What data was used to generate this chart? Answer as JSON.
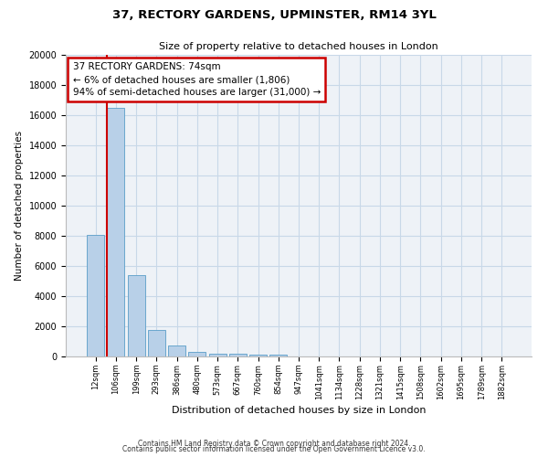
{
  "title": "37, RECTORY GARDENS, UPMINSTER, RM14 3YL",
  "subtitle": "Size of property relative to detached houses in London",
  "xlabel": "Distribution of detached houses by size in London",
  "ylabel": "Number of detached properties",
  "bar_color": "#b8d0e8",
  "bar_edge_color": "#5a9ec8",
  "categories": [
    "12sqm",
    "106sqm",
    "199sqm",
    "293sqm",
    "386sqm",
    "480sqm",
    "573sqm",
    "667sqm",
    "760sqm",
    "854sqm",
    "947sqm",
    "1041sqm",
    "1134sqm",
    "1228sqm",
    "1321sqm",
    "1415sqm",
    "1508sqm",
    "1602sqm",
    "1695sqm",
    "1789sqm",
    "1882sqm"
  ],
  "values": [
    8050,
    16500,
    5400,
    1750,
    700,
    320,
    200,
    175,
    150,
    100,
    0,
    0,
    0,
    0,
    0,
    0,
    0,
    0,
    0,
    0,
    0
  ],
  "ylim": [
    0,
    20000
  ],
  "yticks": [
    0,
    2000,
    4000,
    6000,
    8000,
    10000,
    12000,
    14000,
    16000,
    18000,
    20000
  ],
  "annotation_text": "37 RECTORY GARDENS: 74sqm\n← 6% of detached houses are smaller (1,806)\n94% of semi-detached houses are larger (31,000) →",
  "annotation_box_color": "#ffffff",
  "annotation_border_color": "#cc0000",
  "red_line_color": "#cc0000",
  "grid_color": "#c8d8e8",
  "background_color": "#eef2f7",
  "footer_line1": "Contains HM Land Registry data © Crown copyright and database right 2024.",
  "footer_line2": "Contains public sector information licensed under the Open Government Licence v3.0."
}
